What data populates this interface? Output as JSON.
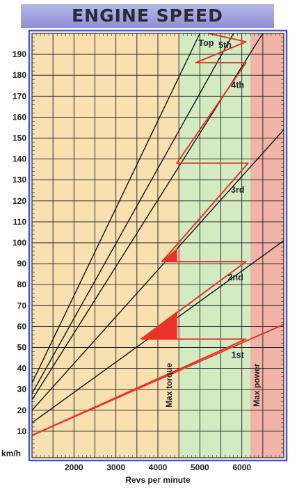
{
  "title": "ENGINE SPEED",
  "chart_data": {
    "type": "line",
    "title": "ENGINE SPEED",
    "xlabel": "Revs per minute",
    "ylabel": "km/h",
    "xlim": [
      1000,
      7000
    ],
    "ylim": [
      0,
      200
    ],
    "x_ticks": [
      2000,
      3000,
      4000,
      5000,
      6000
    ],
    "y_ticks": [
      10,
      20,
      30,
      40,
      50,
      60,
      70,
      80,
      90,
      100,
      110,
      120,
      130,
      140,
      150,
      160,
      170,
      180,
      190
    ],
    "grid": true,
    "zones": [
      {
        "label": "",
        "from": 1000,
        "to": 4500,
        "color": "#f8e0b0"
      },
      {
        "label": "Max torque",
        "from": 4500,
        "to": 6200,
        "color": "#d4ebc2"
      },
      {
        "label": "Max power",
        "from": 6200,
        "to": 7000,
        "color": "#f2b4a8"
      }
    ],
    "gear_lines": [
      {
        "name": "1st",
        "x": [
          1000,
          7000
        ],
        "y": [
          8,
          61
        ]
      },
      {
        "name": "2nd",
        "x": [
          1000,
          7000
        ],
        "y": [
          14,
          101
        ]
      },
      {
        "name": "3rd",
        "x": [
          1000,
          7000
        ],
        "y": [
          20,
          154
        ]
      },
      {
        "name": "4th",
        "x": [
          1000,
          6500
        ],
        "y": [
          25,
          200
        ]
      },
      {
        "name": "5th",
        "x": [
          1000,
          5800
        ],
        "y": [
          28,
          200
        ]
      },
      {
        "name": "Top",
        "x": [
          1000,
          5000
        ],
        "y": [
          33,
          200
        ]
      }
    ],
    "gear_labels": [
      "Top",
      "5th",
      "4th",
      "3rd",
      "2nd",
      "1st"
    ],
    "shift_path": {
      "x": [
        1000,
        6100,
        3600,
        6100,
        4100,
        6150,
        4450,
        6100,
        4900,
        6100,
        5200
      ],
      "y": [
        8,
        54,
        54,
        91,
        91,
        138,
        138,
        186,
        186,
        196,
        200
      ]
    },
    "shaded_regions": [
      {
        "x": [
          3600,
          4450,
          4450
        ],
        "y": [
          54,
          54,
          67
        ]
      },
      {
        "x": [
          4100,
          4450,
          4450
        ],
        "y": [
          91,
          91,
          97
        ]
      }
    ]
  },
  "colors": {
    "title_bg": "#a2a2dc",
    "frame": "#4a56c8",
    "grid": "#1a1a1a",
    "gear_line": "#111111",
    "shift_line": "#e8322a",
    "zone_orange": "#f8e0b0",
    "zone_green": "#d4ebc2",
    "zone_red": "#f2b4a8"
  }
}
